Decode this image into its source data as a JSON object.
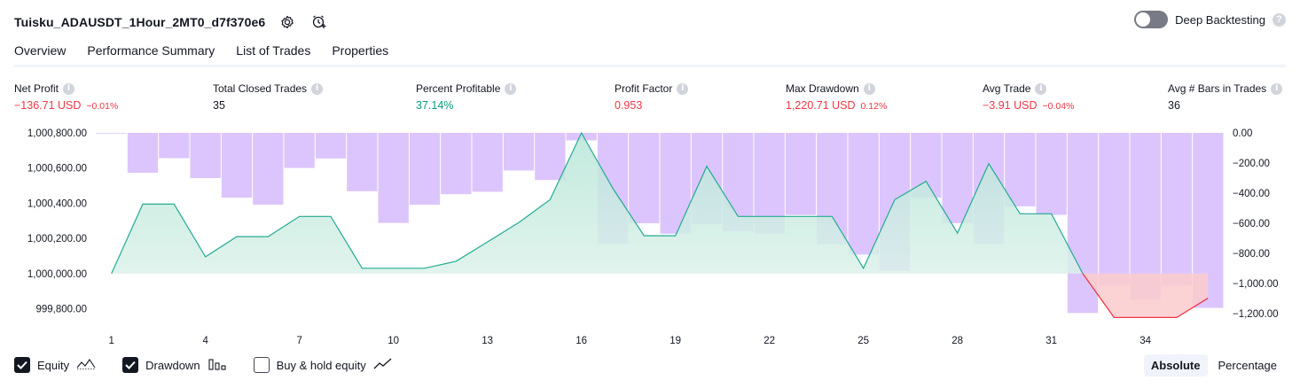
{
  "header": {
    "title": "Tuisku_ADAUSDT_1Hour_2MT0_d7f370e6",
    "settings_icon": "gear-icon",
    "alert_icon": "add-alert-icon"
  },
  "deep_backtesting": {
    "label": "Deep Backtesting",
    "enabled": false,
    "help": "?"
  },
  "tabs": [
    {
      "label": "Overview",
      "active": true
    },
    {
      "label": "Performance Summary",
      "active": false
    },
    {
      "label": "List of Trades",
      "active": false
    },
    {
      "label": "Properties",
      "active": false
    }
  ],
  "metrics": {
    "net_profit": {
      "label": "Net Profit",
      "value": "−136.71 USD",
      "sub": "−0.01%"
    },
    "total_closed_trades": {
      "label": "Total Closed Trades",
      "value": "35"
    },
    "percent_profitable": {
      "label": "Percent Profitable",
      "value": "37.14%"
    },
    "profit_factor": {
      "label": "Profit Factor",
      "value": "0.953"
    },
    "max_drawdown": {
      "label": "Max Drawdown",
      "value": "1,220.71 USD",
      "sub": "0.12%"
    },
    "avg_trade": {
      "label": "Avg Trade",
      "value": "−3.91 USD",
      "sub": "−0.04%"
    },
    "avg_bars": {
      "label": "Avg # Bars in Trades",
      "value": "36"
    },
    "info_glyph": "i"
  },
  "chart_data": {
    "type": "line",
    "left_axis": {
      "ylim": [
        999700,
        1000800
      ],
      "ticks": [
        1000800,
        1000600,
        1000400,
        1000200,
        1000000,
        999800
      ],
      "tick_labels": [
        "1,000,800.00",
        "1,000,600.00",
        "1,000,400.00",
        "1,000,200.00",
        "1,000,000.00",
        "999,800.00"
      ]
    },
    "right_axis": {
      "ylim": [
        -1200,
        0
      ],
      "ticks": [
        0,
        -200,
        -400,
        -600,
        -800,
        -1000,
        -1200
      ],
      "tick_labels": [
        "0.00",
        "−200.00",
        "−400.00",
        "−600.00",
        "−800.00",
        "−1,000.00",
        "−1,200.00"
      ]
    },
    "x_ticks": [
      1,
      4,
      7,
      10,
      13,
      16,
      19,
      22,
      25,
      28,
      31,
      34
    ],
    "x_tick_labels": [
      "1",
      "4",
      "7",
      "10",
      "13",
      "16",
      "19",
      "22",
      "25",
      "28",
      "31",
      "34"
    ],
    "equity": {
      "x": [
        1,
        2,
        3,
        4,
        5,
        6,
        7,
        8,
        9,
        10,
        11,
        12,
        13,
        14,
        15,
        16,
        17,
        18,
        19,
        20,
        21,
        22,
        23,
        24,
        25,
        26,
        27,
        28,
        29,
        30,
        31,
        32,
        33,
        34,
        35,
        36
      ],
      "y": [
        1000000,
        1000395,
        1000395,
        1000095,
        1000210,
        1000210,
        1000325,
        1000325,
        1000030,
        1000030,
        1000030,
        1000070,
        1000180,
        1000290,
        1000420,
        1000800,
        1000485,
        1000215,
        1000215,
        1000610,
        1000325,
        1000325,
        1000325,
        1000325,
        1000030,
        1000420,
        1000525,
        1000230,
        1000625,
        1000340,
        1000340,
        1000000,
        999750,
        999750,
        999750,
        999860
      ]
    },
    "drawdown_bars": [
      0,
      -265,
      -168,
      -300,
      -430,
      -477,
      -233,
      -170,
      -388,
      -598,
      -477,
      -407,
      -391,
      -250,
      -313,
      -50,
      -738,
      -600,
      -670,
      -605,
      -653,
      -670,
      -545,
      -740,
      -808,
      -916,
      -430,
      -600,
      -740,
      -488,
      -545,
      -1196,
      -1015,
      -1108,
      -1015,
      -1162
    ],
    "legend": [
      {
        "label": "Equity",
        "checked": true,
        "icon": "equity-line-icon"
      },
      {
        "label": "Drawdown",
        "checked": true,
        "icon": "drawdown-bars-icon"
      },
      {
        "label": "Buy & hold equity",
        "checked": false,
        "icon": "buy-hold-line-icon"
      }
    ],
    "colors": {
      "equity_line": "#22ab94",
      "equity_fill": "#e0f3ee",
      "below_fill": "#fccbcd",
      "below_line": "#f23645",
      "drawdown_bar": "#d3b7fb"
    }
  },
  "mode": {
    "absolute": "Absolute",
    "percentage": "Percentage",
    "selected": "Absolute"
  }
}
